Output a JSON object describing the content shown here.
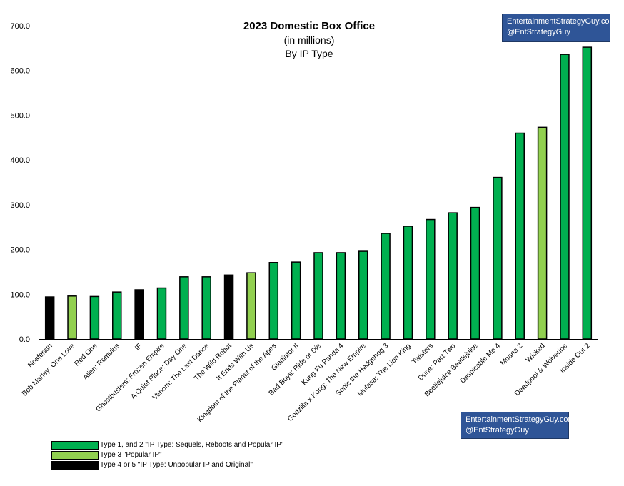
{
  "chart_data": {
    "type": "bar",
    "title": "2023 Domestic Box Office",
    "subtitle_lines": [
      "(in millions)",
      "By IP Type"
    ],
    "xlabel": "",
    "ylabel": "",
    "ylim": [
      0,
      700
    ],
    "yticks": [
      "0.0",
      "100.0",
      "200.0",
      "300.0",
      "400.0",
      "500.0",
      "600.0",
      "700.0"
    ],
    "grid": false,
    "categories": [
      "Nosferatu",
      "Bob Marley: One Love",
      "Red One",
      "Alien: Romulus",
      "IF",
      "Ghostbusters: Frozen Empire",
      "A Quiet Place: Day One",
      "Venom: The Last Dance",
      "The Wild Robot",
      "It Ends With Us",
      "Kingdom of the Planet of the Apes",
      "Gladiator II",
      "Bad Boys: Ride or Die",
      "Kung Fu Panda 4",
      "Godzilla x Kong: The New Empire",
      "Sonic the Hedgehog 3",
      "Mufasa: The Lion King",
      "Twisters",
      "Dune: Part Two",
      "Beetlejuice Beetlejuice",
      "Despicable Me 4",
      "Moana 2",
      "Wicked",
      "Deadpool & Wolverine",
      "Inside Out 2"
    ],
    "values": [
      94,
      96,
      95,
      105,
      110,
      114,
      139,
      139,
      143,
      148,
      171,
      172,
      193,
      193,
      196,
      236,
      252,
      267,
      282,
      294,
      361,
      460,
      473,
      636,
      652
    ],
    "ip_type": [
      "t45",
      "t3",
      "t12",
      "t12",
      "t45",
      "t12",
      "t12",
      "t12",
      "t45",
      "t3",
      "t12",
      "t12",
      "t12",
      "t12",
      "t12",
      "t12",
      "t12",
      "t12",
      "t12",
      "t12",
      "t12",
      "t12",
      "t3",
      "t12",
      "t12"
    ],
    "colors": {
      "t12": "#00b050",
      "t3": "#92d050",
      "t45": "#000000"
    },
    "legend": [
      {
        "key": "t12",
        "label": "Type 1, and 2 \"IP Type: Sequels, Reboots and Popular IP\""
      },
      {
        "key": "t3",
        "label": "Type 3 \"Popular IP\""
      },
      {
        "key": "t45",
        "label": "Type 4 or 5 \"IP Type: Unpopular IP and Original\""
      }
    ],
    "legend_position": "bottom-left"
  },
  "branding": {
    "line1": "EntertainmentStrategyGuy.com",
    "line2": "@EntStrategyGuy",
    "color": "#2f5597"
  }
}
